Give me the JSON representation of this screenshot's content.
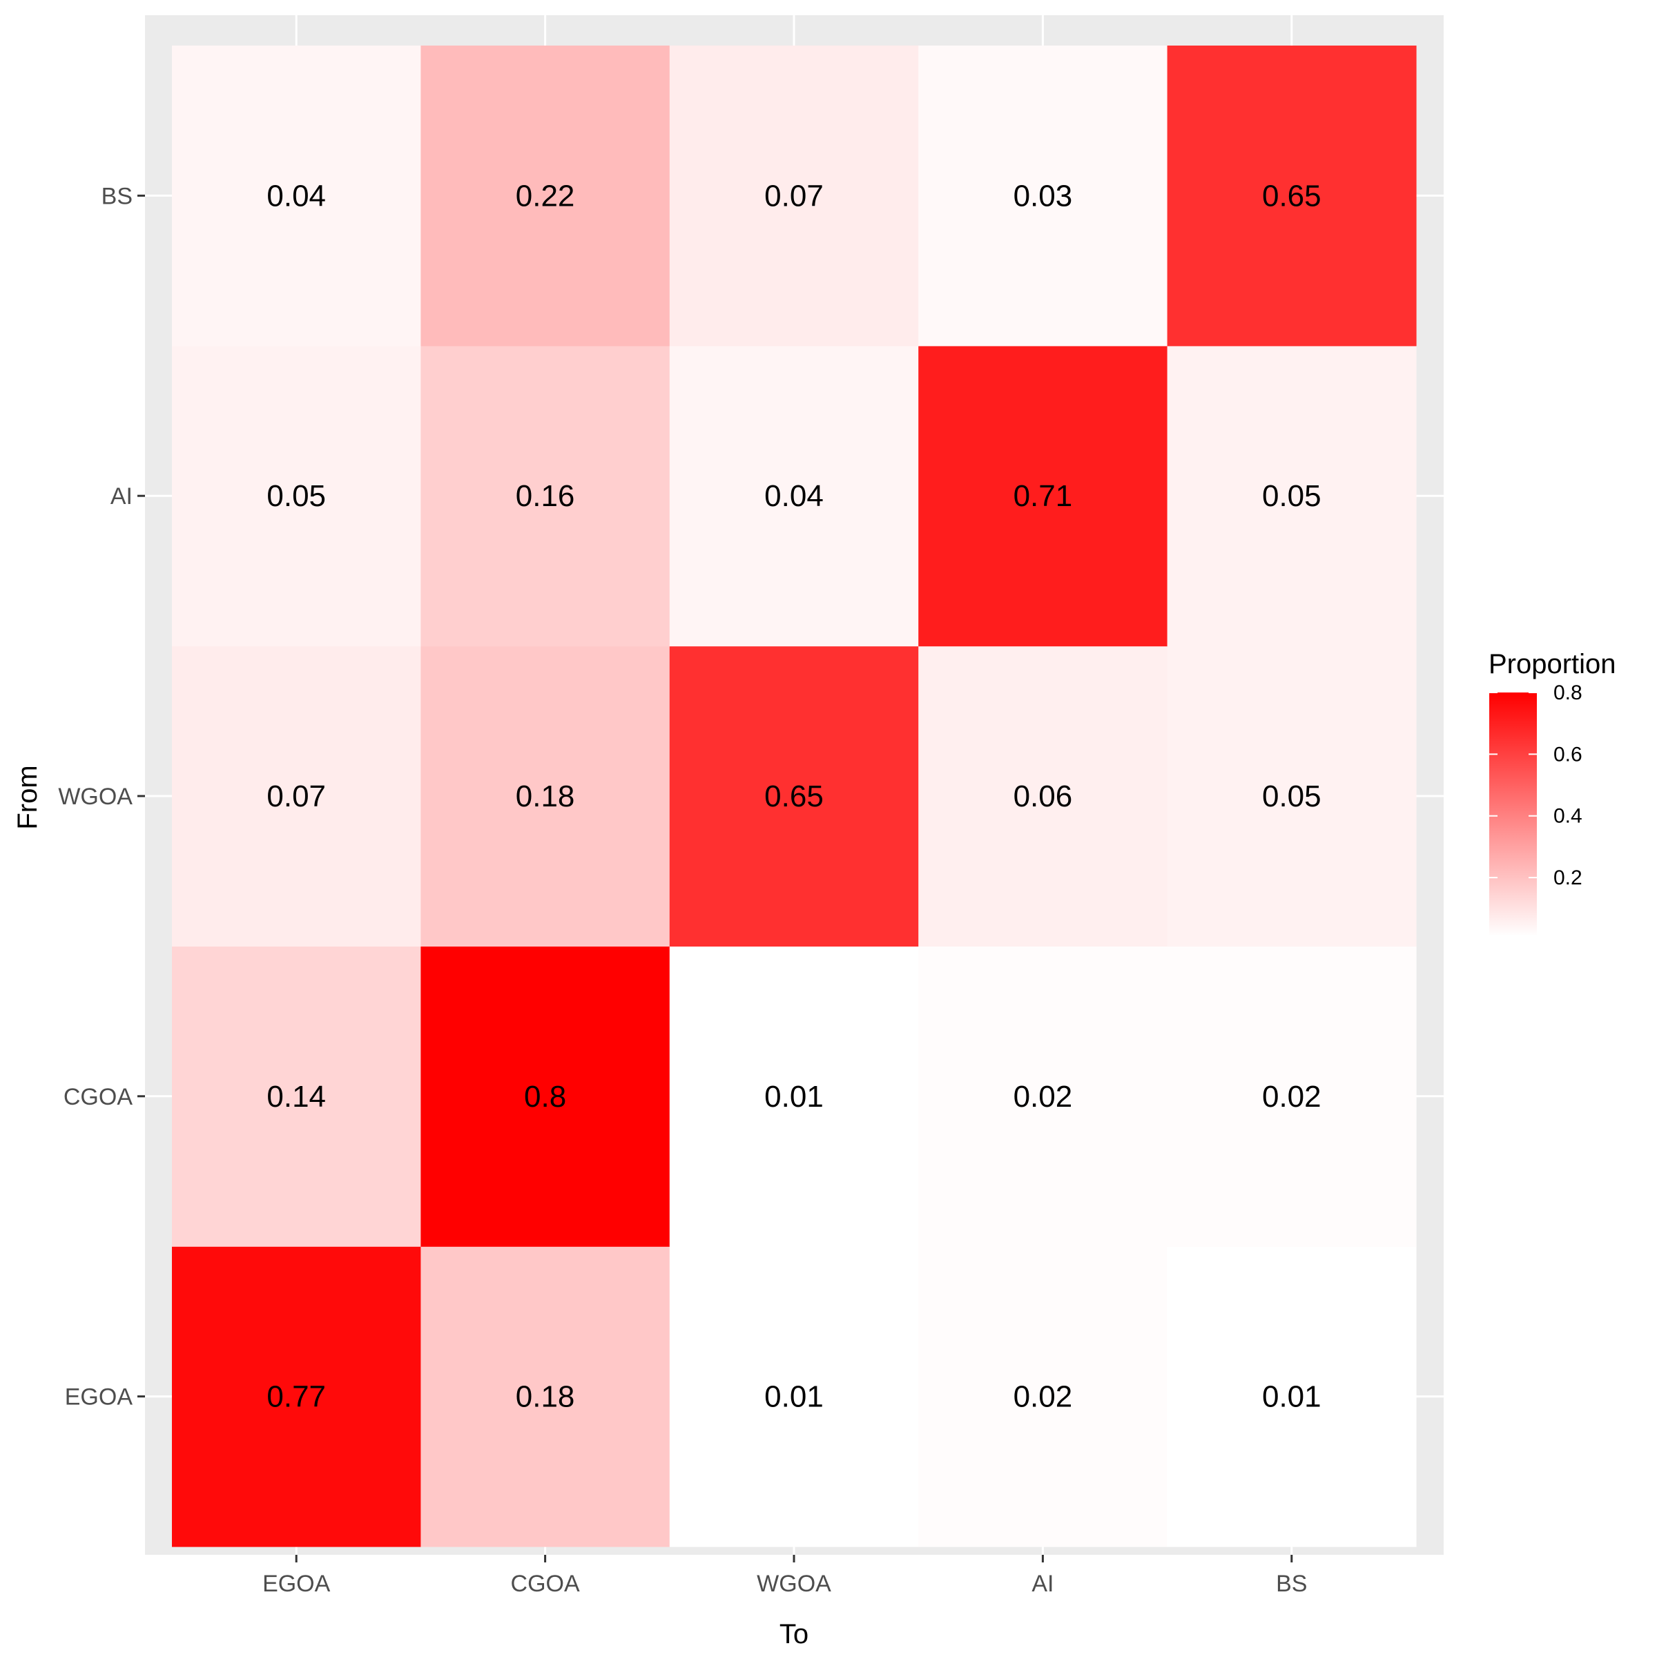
{
  "chart_data": {
    "type": "heatmap",
    "x_categories": [
      "EGOA",
      "CGOA",
      "WGOA",
      "AI",
      "BS"
    ],
    "y_categories": [
      "EGOA",
      "CGOA",
      "WGOA",
      "AI",
      "BS"
    ],
    "xlabel": "To",
    "ylabel": "From",
    "rows": [
      {
        "from": "EGOA",
        "values": [
          0.77,
          0.18,
          0.01,
          0.02,
          0.01
        ],
        "labels": [
          "0.77",
          "0.18",
          "0.01",
          "0.02",
          "0.01"
        ]
      },
      {
        "from": "CGOA",
        "values": [
          0.14,
          0.8,
          0.01,
          0.02,
          0.02
        ],
        "labels": [
          "0.14",
          "0.8",
          "0.01",
          "0.02",
          "0.02"
        ]
      },
      {
        "from": "WGOA",
        "values": [
          0.07,
          0.18,
          0.65,
          0.06,
          0.05
        ],
        "labels": [
          "0.07",
          "0.18",
          "0.65",
          "0.06",
          "0.05"
        ]
      },
      {
        "from": "AI",
        "values": [
          0.05,
          0.16,
          0.04,
          0.71,
          0.05
        ],
        "labels": [
          "0.05",
          "0.16",
          "0.04",
          "0.71",
          "0.05"
        ]
      },
      {
        "from": "BS",
        "values": [
          0.04,
          0.22,
          0.07,
          0.03,
          0.65
        ],
        "labels": [
          "0.04",
          "0.22",
          "0.07",
          "0.03",
          "0.65"
        ]
      }
    ],
    "legend": {
      "title": "Proportion",
      "ticks": [
        0.2,
        0.4,
        0.6,
        0.8
      ],
      "tick_labels": [
        "0.2",
        "0.4",
        "0.6",
        "0.8"
      ],
      "range": [
        0.01,
        0.8
      ],
      "low_color": "#ffffff",
      "high_color": "#ff0000",
      "placement": "right"
    }
  }
}
